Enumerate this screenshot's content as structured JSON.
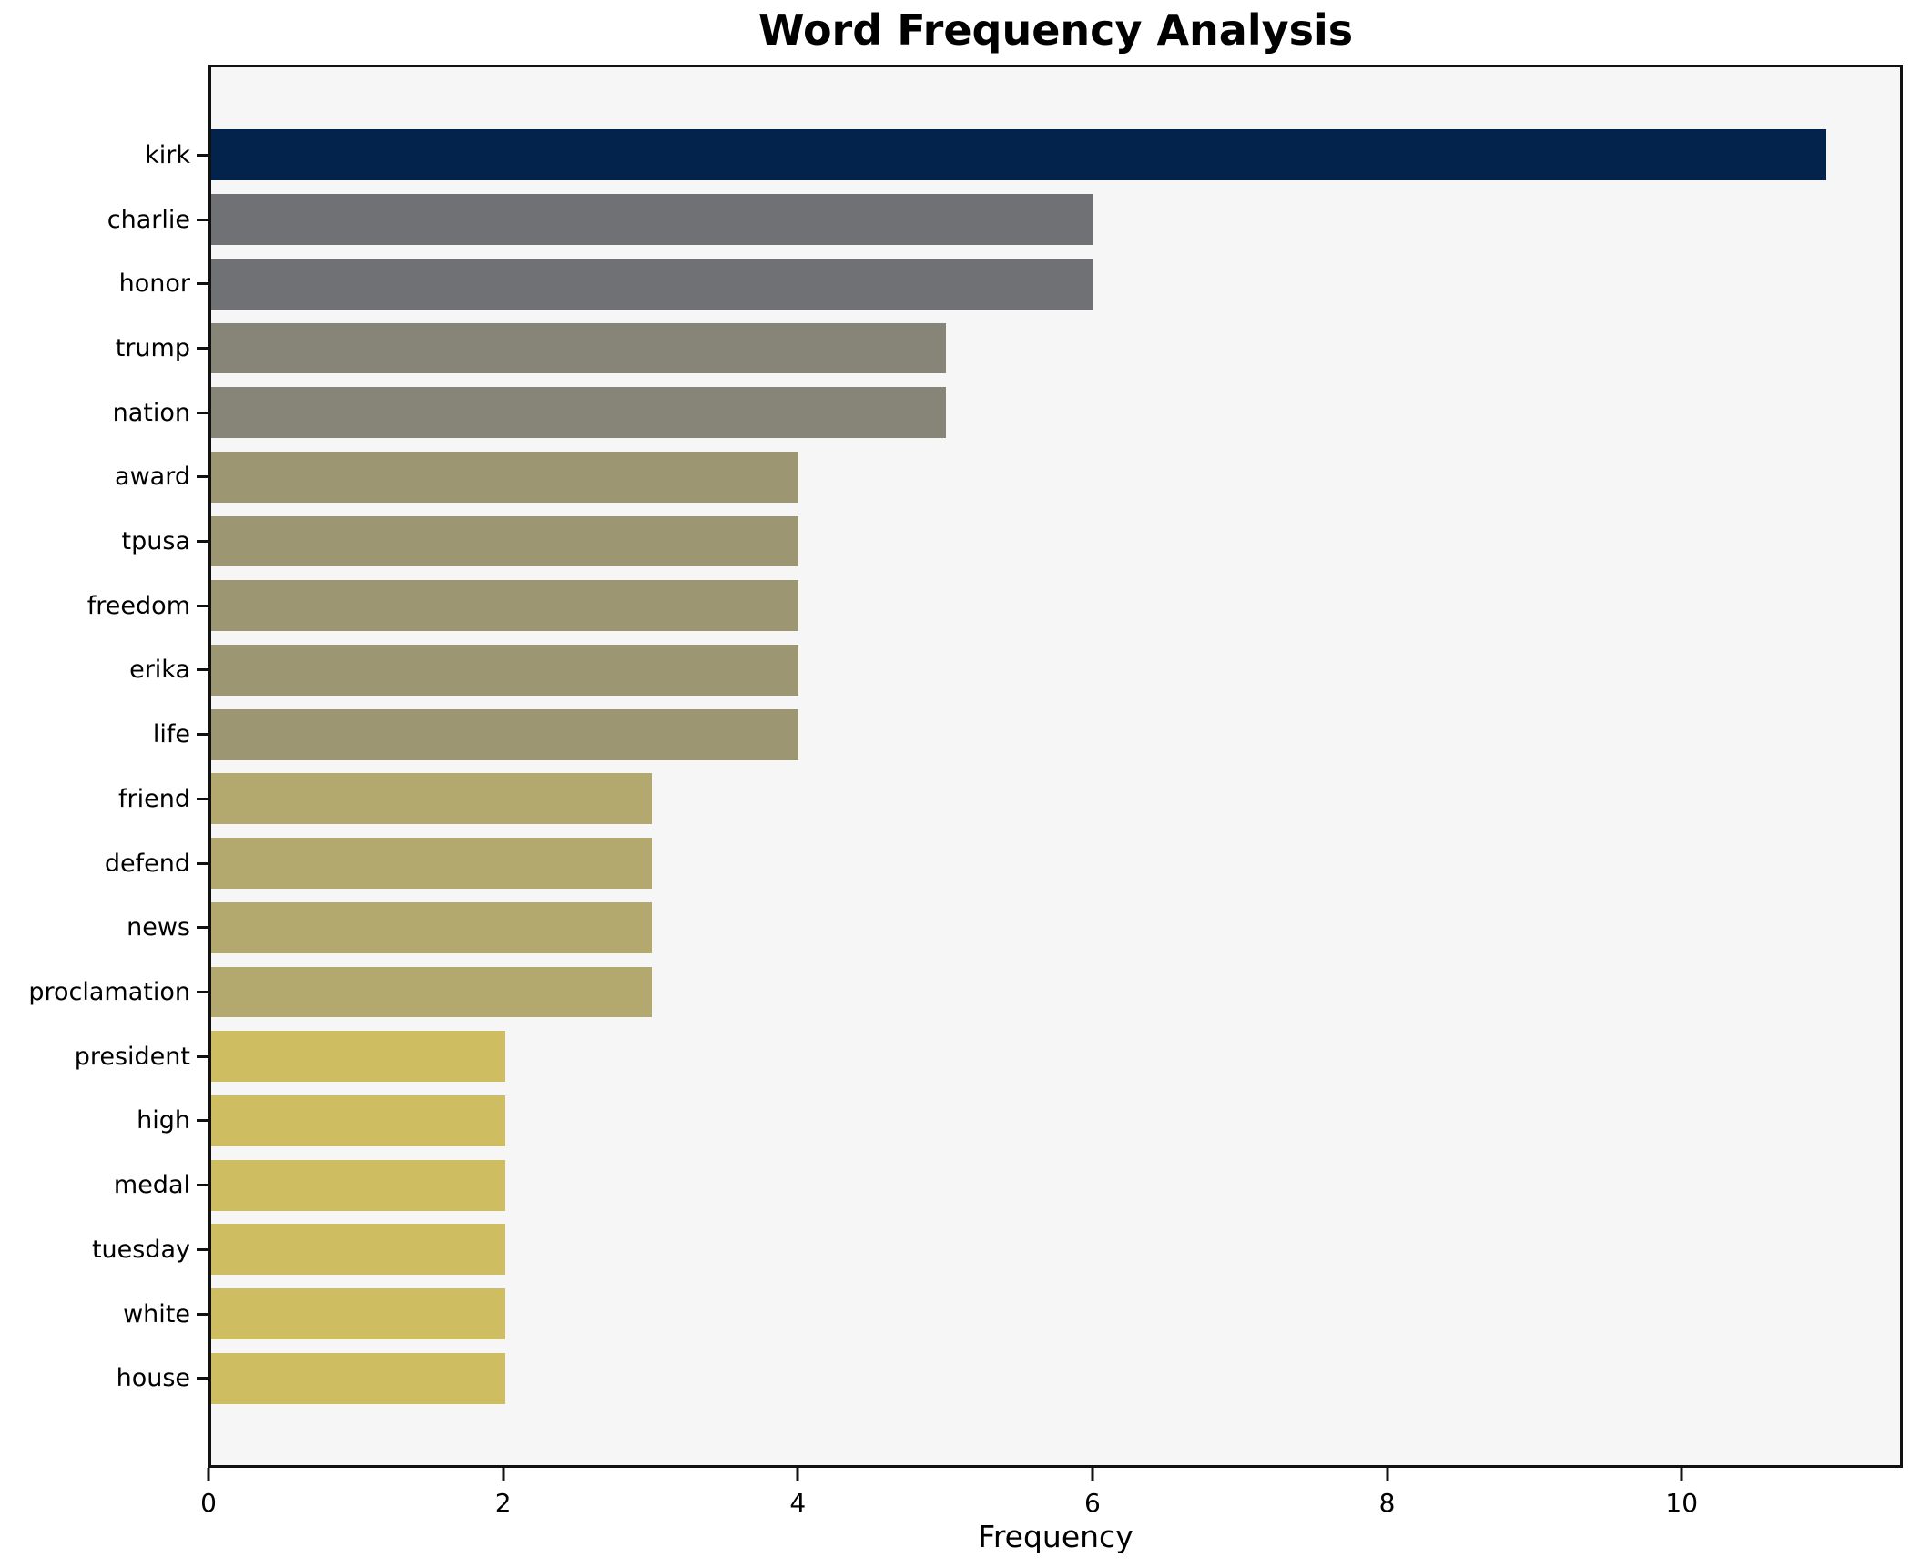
{
  "title": "Word Frequency Analysis",
  "chart_data": {
    "type": "bar",
    "orientation": "horizontal",
    "title": "Word Frequency Analysis",
    "xlabel": "Frequency",
    "ylabel": "",
    "categories": [
      "kirk",
      "charlie",
      "honor",
      "trump",
      "nation",
      "award",
      "tpusa",
      "freedom",
      "erika",
      "life",
      "friend",
      "defend",
      "news",
      "proclamation",
      "president",
      "high",
      "medal",
      "tuesday",
      "white",
      "house"
    ],
    "values": [
      11,
      6,
      6,
      5,
      5,
      4,
      4,
      4,
      4,
      4,
      3,
      3,
      3,
      3,
      2,
      2,
      2,
      2,
      2,
      2
    ],
    "bar_colors": [
      "#03234d",
      "#707174",
      "#707174",
      "#878577",
      "#878577",
      "#9d9673",
      "#9d9673",
      "#9d9673",
      "#9d9673",
      "#9d9673",
      "#b3a96e",
      "#b3a96e",
      "#b3a96e",
      "#b3a96e",
      "#cfbd62",
      "#cfbd62",
      "#cfbd62",
      "#cfbd62",
      "#cfbd62",
      "#cfbd62"
    ],
    "x_ticks": [
      0,
      2,
      4,
      6,
      8,
      10
    ],
    "xlim": [
      0,
      11.5
    ],
    "grid": false,
    "legend": false,
    "plot_background": "#f6f6f7",
    "spine_color": "#111111"
  }
}
